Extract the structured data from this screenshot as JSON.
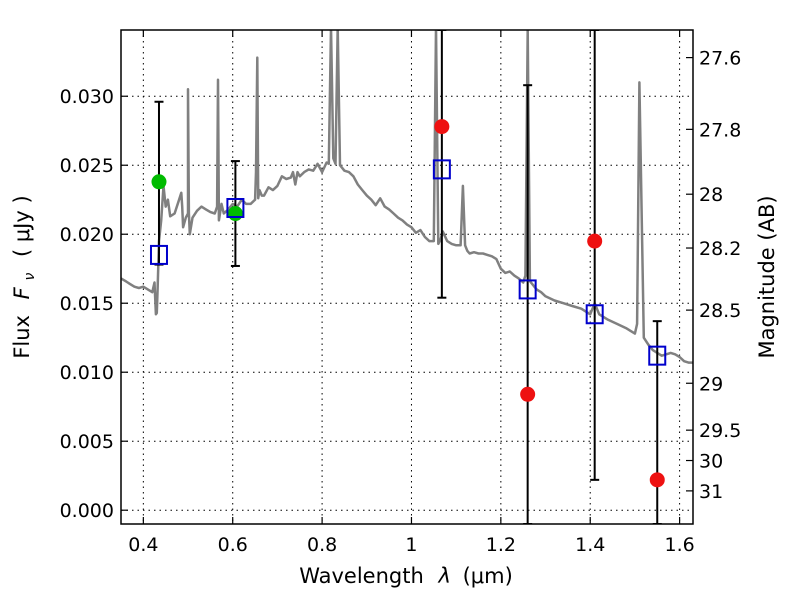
{
  "chart_data": {
    "type": "scatter",
    "xlabel_text": "Wavelength",
    "xlabel_symbol": "λ",
    "xlabel_unit": "(μm)",
    "ylabel_text": "Flux",
    "ylabel_symbol": "F",
    "ylabel_sub": "ν",
    "ylabel_unit": "( μJy )",
    "y2label": "Magnitude (AB)",
    "xlim": [
      0.35,
      1.63
    ],
    "ylim": [
      -0.001,
      0.0348
    ],
    "x_ticks": [
      {
        "value": 0.4,
        "label": "0.4"
      },
      {
        "value": 0.6,
        "label": "0.6"
      },
      {
        "value": 0.8,
        "label": "0.8"
      },
      {
        "value": 1.0,
        "label": "1"
      },
      {
        "value": 1.2,
        "label": "1.2"
      },
      {
        "value": 1.4,
        "label": "1.4"
      },
      {
        "value": 1.6,
        "label": "1.6"
      }
    ],
    "y_ticks": [
      {
        "value": 0.0,
        "label": "0.000"
      },
      {
        "value": 0.005,
        "label": "0.005"
      },
      {
        "value": 0.01,
        "label": "0.010"
      },
      {
        "value": 0.015,
        "label": "0.015"
      },
      {
        "value": 0.02,
        "label": "0.020"
      },
      {
        "value": 0.025,
        "label": "0.025"
      },
      {
        "value": 0.03,
        "label": "0.030"
      }
    ],
    "y2_ticks": [
      {
        "flux": 0.0328,
        "label": "27.6"
      },
      {
        "flux": 0.0276,
        "label": "27.8"
      },
      {
        "flux": 0.0229,
        "label": "28"
      },
      {
        "flux": 0.019,
        "label": "28.2"
      },
      {
        "flux": 0.0145,
        "label": "28.5"
      },
      {
        "flux": 0.0092,
        "label": "29"
      },
      {
        "flux": 0.0058,
        "label": "29.5"
      },
      {
        "flux": 0.0036,
        "label": "30"
      },
      {
        "flux": 0.0014,
        "label": "31"
      }
    ],
    "grid": true,
    "colors": {
      "sed": "#808080",
      "detection": "#00bb00",
      "nondetection": "#ee1111",
      "model": "#0000cc",
      "errorbar": "#000000"
    },
    "sed_spectrum": {
      "x": [
        0.35,
        0.36,
        0.37,
        0.38,
        0.39,
        0.4,
        0.41,
        0.42,
        0.425,
        0.428,
        0.43,
        0.432,
        0.435,
        0.44,
        0.445,
        0.45,
        0.455,
        0.46,
        0.47,
        0.48,
        0.485,
        0.487,
        0.489,
        0.495,
        0.5,
        0.5,
        0.502,
        0.504,
        0.51,
        0.52,
        0.53,
        0.54,
        0.55,
        0.56,
        0.565,
        0.567,
        0.569,
        0.575,
        0.58,
        0.59,
        0.6,
        0.61,
        0.62,
        0.63,
        0.64,
        0.65,
        0.652,
        0.655,
        0.657,
        0.66,
        0.665,
        0.67,
        0.68,
        0.69,
        0.7,
        0.71,
        0.72,
        0.73,
        0.735,
        0.74,
        0.745,
        0.75,
        0.76,
        0.77,
        0.78,
        0.79,
        0.8,
        0.81,
        0.815,
        0.82,
        0.825,
        0.83,
        0.835,
        0.84,
        0.85,
        0.86,
        0.87,
        0.88,
        0.89,
        0.9,
        0.91,
        0.92,
        0.93,
        0.94,
        0.95,
        0.96,
        0.97,
        0.98,
        0.99,
        1.0,
        1.01,
        1.02,
        1.03,
        1.04,
        1.05,
        1.055,
        1.06,
        1.065,
        1.07,
        1.08,
        1.09,
        1.1,
        1.11,
        1.115,
        1.12,
        1.125,
        1.13,
        1.14,
        1.15,
        1.16,
        1.17,
        1.18,
        1.19,
        1.2,
        1.21,
        1.22,
        1.23,
        1.24,
        1.25,
        1.255,
        1.26,
        1.265,
        1.27,
        1.28,
        1.29,
        1.3,
        1.32,
        1.34,
        1.36,
        1.38,
        1.4,
        1.41,
        1.42,
        1.44,
        1.46,
        1.48,
        1.49,
        1.5,
        1.505,
        1.51,
        1.52,
        1.53,
        1.54,
        1.55,
        1.56,
        1.57,
        1.58,
        1.59,
        1.6,
        1.61,
        1.62,
        1.63
      ],
      "y": [
        0.0168,
        0.0166,
        0.0164,
        0.0162,
        0.0161,
        0.0162,
        0.016,
        0.0158,
        0.0165,
        0.0142,
        0.0143,
        0.016,
        0.0195,
        0.021,
        0.0235,
        0.022,
        0.0225,
        0.0213,
        0.0215,
        0.0225,
        0.023,
        0.022,
        0.0205,
        0.0212,
        0.0215,
        0.0305,
        0.0215,
        0.02,
        0.0212,
        0.0217,
        0.022,
        0.0218,
        0.0216,
        0.0215,
        0.022,
        0.0312,
        0.021,
        0.0222,
        0.0215,
        0.0218,
        0.0222,
        0.022,
        0.0225,
        0.0222,
        0.0222,
        0.0225,
        0.0245,
        0.0328,
        0.0226,
        0.0232,
        0.0228,
        0.0228,
        0.0234,
        0.0232,
        0.0235,
        0.0242,
        0.024,
        0.0241,
        0.0245,
        0.0236,
        0.0245,
        0.0242,
        0.0245,
        0.0247,
        0.0246,
        0.0251,
        0.0245,
        0.0252,
        0.0251,
        0.035,
        0.0255,
        0.0251,
        0.035,
        0.025,
        0.0246,
        0.0245,
        0.0242,
        0.0236,
        0.0232,
        0.0228,
        0.0225,
        0.0221,
        0.0226,
        0.022,
        0.0218,
        0.0215,
        0.0212,
        0.021,
        0.0207,
        0.0205,
        0.0201,
        0.0203,
        0.0198,
        0.0195,
        0.0195,
        0.035,
        0.0193,
        0.0196,
        0.0202,
        0.0195,
        0.0193,
        0.0192,
        0.0192,
        0.0235,
        0.0192,
        0.0188,
        0.0186,
        0.0187,
        0.0186,
        0.0186,
        0.0185,
        0.0184,
        0.0182,
        0.0175,
        0.0172,
        0.0173,
        0.017,
        0.0168,
        0.0165,
        0.017,
        0.0348,
        0.0166,
        0.0164,
        0.016,
        0.0158,
        0.0155,
        0.0152,
        0.015,
        0.0148,
        0.0146,
        0.0142,
        0.015,
        0.0142,
        0.0138,
        0.0135,
        0.0132,
        0.013,
        0.0128,
        0.0135,
        0.031,
        0.0125,
        0.012,
        0.0116,
        0.0114,
        0.0112,
        0.0113,
        0.0114,
        0.0113,
        0.0111,
        0.0108,
        0.0107,
        0.0107
      ]
    },
    "series": [
      {
        "kind": "detection",
        "points": [
          {
            "x": 0.435,
            "y": 0.0238,
            "err_low": 0.0178,
            "err_high": 0.0296
          },
          {
            "x": 0.606,
            "y": 0.0215,
            "err_low": 0.0177,
            "err_high": 0.0253
          }
        ]
      },
      {
        "kind": "nondetection",
        "points": [
          {
            "x": 1.068,
            "y": 0.0278,
            "err_low": 0.0154,
            "err_high": 0.0348
          },
          {
            "x": 1.26,
            "y": 0.0084,
            "err_low": -0.001,
            "err_high": 0.0308
          },
          {
            "x": 1.41,
            "y": 0.0195,
            "err_low": 0.0022,
            "err_high": 0.0348
          },
          {
            "x": 1.55,
            "y": 0.0022,
            "err_low": -0.001,
            "err_high": 0.0137
          }
        ]
      },
      {
        "kind": "model",
        "points": [
          {
            "x": 0.435,
            "y": 0.0185
          },
          {
            "x": 0.606,
            "y": 0.0219
          },
          {
            "x": 1.068,
            "y": 0.0247
          },
          {
            "x": 1.26,
            "y": 0.016
          },
          {
            "x": 1.41,
            "y": 0.0142
          },
          {
            "x": 1.55,
            "y": 0.0112
          }
        ]
      }
    ]
  }
}
